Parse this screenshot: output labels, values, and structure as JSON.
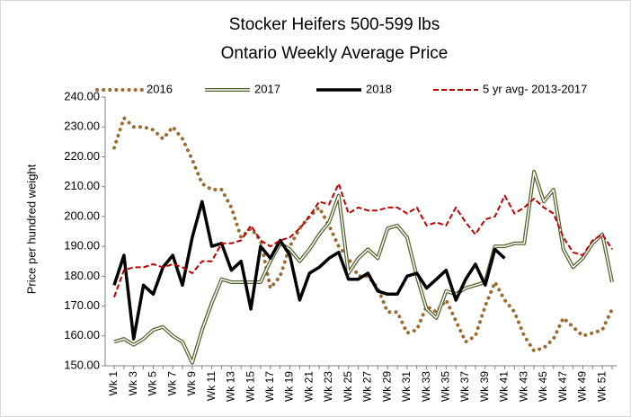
{
  "chart_data": {
    "type": "line",
    "title": "Stocker Heifers 500-599 lbs",
    "subtitle": "Ontario Weekly Average  Price",
    "y_label": "Price per hundred weight",
    "categories": [
      "Wk 1",
      null,
      "Wk 3",
      null,
      "Wk 5",
      null,
      "Wk 7",
      null,
      "Wk 9",
      null,
      "Wk 11",
      null,
      "Wk 13",
      null,
      "Wk 15",
      null,
      "Wk 17",
      null,
      "Wk 19",
      null,
      "Wk 21",
      null,
      "Wk 23",
      null,
      "Wk 25",
      null,
      "Wk 27",
      null,
      "Wk 29",
      null,
      "Wk 31",
      null,
      "Wk 33",
      null,
      "Wk 35",
      null,
      "Wk 37",
      null,
      "Wk 39",
      null,
      "Wk 41",
      null,
      "Wk 43",
      null,
      "Wk 45",
      null,
      "Wk 47",
      null,
      "Wk 49",
      null,
      "Wk 51",
      null
    ],
    "ylim": [
      150,
      240
    ],
    "yticks": [
      {
        "value": 150,
        "label": "150.00"
      },
      {
        "value": 160,
        "label": "160.00"
      },
      {
        "value": 170,
        "label": "170.00"
      },
      {
        "value": 180,
        "label": "180.00"
      },
      {
        "value": 190,
        "label": "190.00"
      },
      {
        "value": 200,
        "label": "200.00"
      },
      {
        "value": 210,
        "label": "210.00"
      },
      {
        "value": 220,
        "label": "220.00"
      },
      {
        "value": 230,
        "label": "230.00"
      },
      {
        "value": 240,
        "label": "240.00"
      }
    ],
    "grid": false,
    "series": [
      {
        "name": "2016",
        "color": "#9c6b2f",
        "style": "dotted",
        "values": [
          223,
          233,
          230,
          230,
          229,
          226,
          230,
          226,
          219,
          211,
          209,
          209,
          203,
          193,
          196,
          192,
          176,
          180,
          190,
          196,
          200,
          203,
          197,
          190,
          186,
          180,
          180,
          176,
          168,
          168,
          161,
          162,
          170,
          168,
          172,
          165,
          158,
          160,
          170,
          178,
          172,
          168,
          160,
          155,
          156,
          159,
          166,
          163,
          160,
          161,
          162,
          169
        ]
      },
      {
        "name": "2017",
        "color": "#4f6228",
        "style": "double",
        "values": [
          158,
          159,
          157,
          159,
          162,
          163,
          160,
          158,
          151,
          162,
          171,
          179,
          178,
          178,
          178,
          178,
          185,
          191,
          189,
          185,
          189,
          194,
          198,
          207,
          181,
          186,
          189,
          186,
          196,
          197,
          193,
          180,
          169,
          166,
          175,
          174,
          176,
          177,
          178,
          190,
          190,
          191,
          191,
          215,
          205,
          209,
          189,
          183,
          186,
          191,
          194,
          178
        ]
      },
      {
        "name": "2018",
        "color": "#000000",
        "style": "solid",
        "values": [
          177,
          187,
          159,
          177,
          174,
          183,
          187,
          177,
          193,
          205,
          190,
          191,
          182,
          185,
          169,
          190,
          186,
          192,
          187,
          172,
          181,
          183,
          186,
          188,
          179,
          179,
          181,
          175,
          174,
          174,
          180,
          181,
          176,
          179,
          182,
          172,
          179,
          184,
          177,
          189,
          186,
          null,
          null,
          null,
          null,
          null,
          null,
          null,
          null,
          null,
          null,
          null
        ]
      },
      {
        "name": "5 yr avg- 2013-2017",
        "color": "#c00000",
        "style": "dashed",
        "values": [
          173,
          182,
          183,
          183,
          184,
          183,
          184,
          183,
          181,
          185,
          185,
          191,
          191,
          192,
          197,
          192,
          190,
          192,
          193,
          196,
          200,
          205,
          204,
          211,
          201,
          203,
          202,
          202,
          203,
          203,
          201,
          203,
          197,
          198,
          197,
          203,
          198,
          194,
          199,
          200,
          207,
          201,
          203,
          206,
          203,
          201,
          193,
          188,
          187,
          192,
          194,
          189
        ]
      }
    ]
  }
}
